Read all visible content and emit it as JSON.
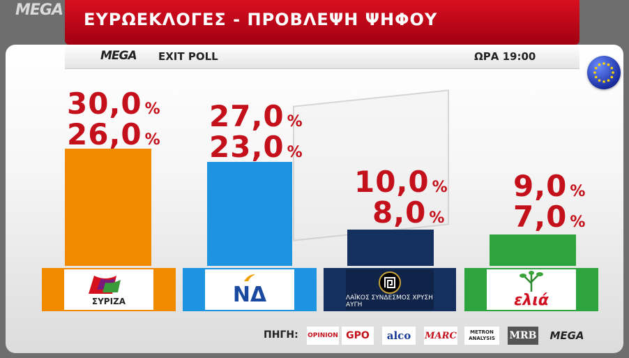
{
  "channel": {
    "logo": "MEGA"
  },
  "header": {
    "title": "ΕΥΡΩΕΚΛΟΓΕΣ - ΠΡΟΒΛΕΨΗ ΨΗΦΟΥ"
  },
  "subheader": {
    "logo": "MEGA",
    "label": "EXIT POLL",
    "time": "ΩΡΑ 19:00"
  },
  "colors": {
    "title_bar": "#c20a19",
    "value_text": "#c4101a"
  },
  "chart_data": {
    "type": "bar",
    "categories": [
      "ΣΥΡΙΖΑ",
      "ΝΔ",
      "ΧΡΥΣΗ ΑΥΓΗ",
      "ελιά"
    ],
    "series": [
      {
        "values": [
          30.0,
          27.0,
          10.0,
          9.0
        ]
      },
      {
        "values": [
          26.0,
          23.0,
          8.0,
          7.0
        ]
      }
    ],
    "labels": {
      "high": [
        "30,0",
        "27,0",
        "10,0",
        "9,0"
      ],
      "low": [
        "26,0",
        "23,0",
        "8,0",
        "7,0"
      ],
      "unit": "%"
    },
    "bar_colors": [
      "#f28a00",
      "#1e93e0",
      "#14305e",
      "#2ea43e"
    ],
    "party_logo_text": [
      "ΣΥΡΙΖΑ",
      "ΝΔ",
      "ΛΑΪΚΟΣ ΣΥΝΔΕΣΜΟΣ ΧΡΥΣΗ ΑΥΓΗ",
      "ελιά"
    ],
    "ylim": [
      0,
      30
    ]
  },
  "footer": {
    "source_label": "ΠΗΓΗ:",
    "sources": [
      "OPINION",
      "GPO",
      "alco",
      "MARC",
      "METRON ANALYSIS",
      "MRB",
      "MEGA"
    ]
  }
}
